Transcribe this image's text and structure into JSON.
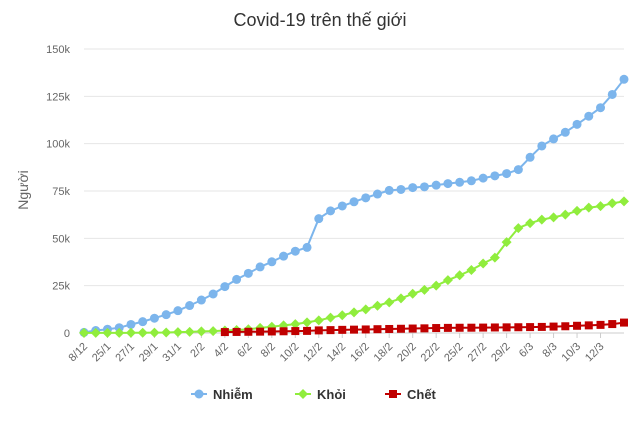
{
  "chart_data": {
    "type": "line",
    "title": "Covid-19 trên thế giới",
    "xlabel": "",
    "ylabel": "Người",
    "ylim": [
      0,
      150000
    ],
    "y_ticks": [
      {
        "value": 0,
        "label": "0"
      },
      {
        "value": 25000,
        "label": "25k"
      },
      {
        "value": 50000,
        "label": "50k"
      },
      {
        "value": 75000,
        "label": "75k"
      },
      {
        "value": 100000,
        "label": "100k"
      },
      {
        "value": 125000,
        "label": "125k"
      },
      {
        "value": 150000,
        "label": "150k"
      }
    ],
    "x_tick_labels": [
      {
        "index": 0,
        "label": "8/12"
      },
      {
        "index": 2,
        "label": "25/1"
      },
      {
        "index": 4,
        "label": "27/1"
      },
      {
        "index": 6,
        "label": "29/1"
      },
      {
        "index": 8,
        "label": "31/1"
      },
      {
        "index": 10,
        "label": "2/2"
      },
      {
        "index": 12,
        "label": "4/2"
      },
      {
        "index": 14,
        "label": "6/2"
      },
      {
        "index": 16,
        "label": "8/2"
      },
      {
        "index": 18,
        "label": "10/2"
      },
      {
        "index": 20,
        "label": "12/2"
      },
      {
        "index": 22,
        "label": "14/2"
      },
      {
        "index": 24,
        "label": "16/2"
      },
      {
        "index": 26,
        "label": "18/2"
      },
      {
        "index": 28,
        "label": "20/2"
      },
      {
        "index": 30,
        "label": "22/2"
      },
      {
        "index": 32,
        "label": "25/2"
      },
      {
        "index": 34,
        "label": "27/2"
      },
      {
        "index": 36,
        "label": "29/2"
      },
      {
        "index": 38,
        "label": "6/3"
      },
      {
        "index": 40,
        "label": "8/3"
      },
      {
        "index": 42,
        "label": "10/3"
      },
      {
        "index": 44,
        "label": "12/3"
      }
    ],
    "point_count": 46,
    "grid": "horizontal",
    "legend_position": "bottom-center",
    "series": [
      {
        "name": "Nhiễm",
        "color": "#7cb5ec",
        "marker": "circle",
        "values": [
          300,
          1300,
          2000,
          2800,
          4500,
          6000,
          7800,
          9700,
          11800,
          14500,
          17400,
          20600,
          24500,
          28300,
          31500,
          34900,
          37600,
          40600,
          43200,
          45200,
          60400,
          64500,
          67100,
          69300,
          71400,
          73400,
          75300,
          75800,
          76800,
          77200,
          78100,
          78900,
          79600,
          80400,
          81800,
          83000,
          84200,
          86300,
          92800,
          98800,
          102500,
          106000,
          110200,
          114500,
          119000,
          126000
        ]
      },
      {
        "name": "Khỏi",
        "color": "#90ed3d",
        "marker": "diamond",
        "values": [
          50,
          50,
          50,
          60,
          100,
          120,
          200,
          280,
          450,
          600,
          850,
          1000,
          1300,
          1600,
          2000,
          2700,
          3300,
          4000,
          4700,
          5600,
          6700,
          8100,
          9400,
          10900,
          12500,
          14400,
          16200,
          18300,
          20700,
          22800,
          25000,
          27900,
          30500,
          33300,
          36700,
          39800,
          48000,
          55400,
          58000,
          59900,
          61100,
          62500,
          64500,
          66200,
          67000,
          68500
        ]
      },
      {
        "name": "Chết",
        "color": "#c00000",
        "marker": "square",
        "values": [
          null,
          null,
          null,
          null,
          null,
          null,
          null,
          null,
          null,
          null,
          null,
          null,
          490,
          560,
          640,
          720,
          810,
          910,
          1020,
          1110,
          1370,
          1520,
          1660,
          1770,
          1870,
          2010,
          2120,
          2240,
          2360,
          2460,
          2620,
          2700,
          2770,
          2800,
          2860,
          2920,
          2980,
          3040,
          3120,
          3210,
          3390,
          3560,
          3810,
          4030,
          4290,
          4720
        ]
      }
    ],
    "extra_points": {
      "Nhiễm": [
        134000
      ],
      "Khỏi": [
        69500
      ],
      "Chết": [
        5500
      ]
    }
  }
}
